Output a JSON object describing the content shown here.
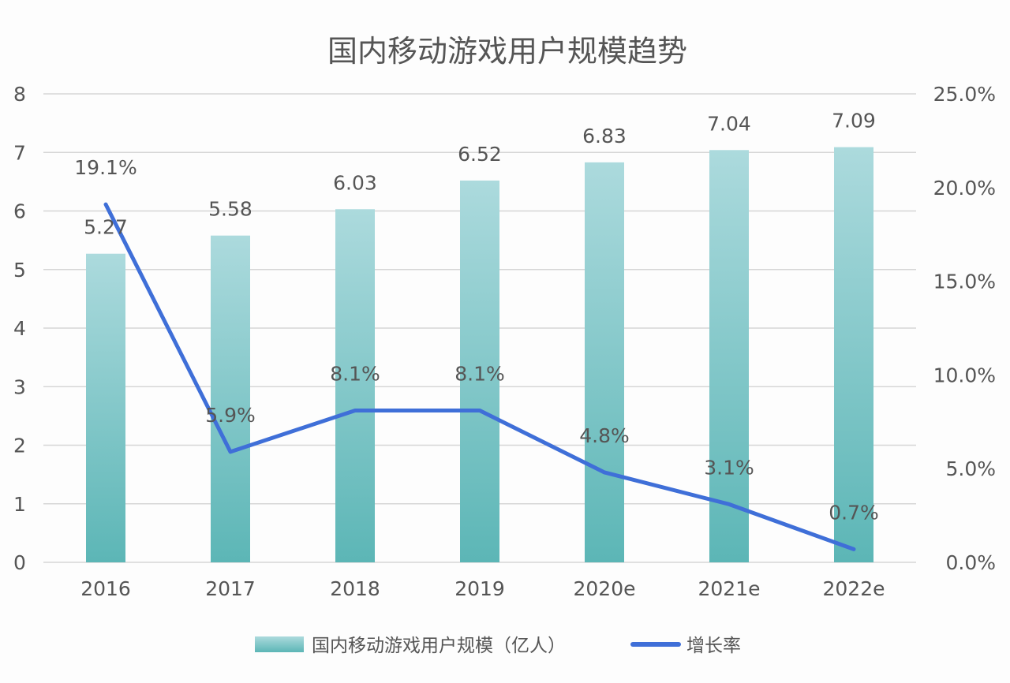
{
  "chart_data": {
    "type": "bar+line",
    "title": "国内移动游戏用户规模趋势",
    "categories": [
      "2016",
      "2017",
      "2018",
      "2019",
      "2020e",
      "2021e",
      "2022e"
    ],
    "series": [
      {
        "name": "国内移动游戏用户规模（亿人）",
        "type": "bar",
        "axis": "left",
        "values": [
          5.27,
          5.58,
          6.03,
          6.52,
          6.83,
          7.04,
          7.09
        ],
        "labels": [
          "5.27",
          "5.58",
          "6.03",
          "6.52",
          "6.83",
          "7.04",
          "7.09"
        ],
        "color": "#7cc4c6"
      },
      {
        "name": "增长率",
        "type": "line",
        "axis": "right",
        "values": [
          19.1,
          5.9,
          8.1,
          8.1,
          4.8,
          3.1,
          0.7
        ],
        "labels": [
          "19.1%",
          "5.9%",
          "8.1%",
          "8.1%",
          "4.8%",
          "3.1%",
          "0.7%"
        ],
        "color": "#3f6fd8"
      }
    ],
    "y_left": {
      "range": [
        0,
        8
      ],
      "ticks": [
        "0",
        "1",
        "2",
        "3",
        "4",
        "5",
        "6",
        "7",
        "8"
      ]
    },
    "y_right": {
      "range": [
        0,
        25
      ],
      "ticks": [
        "0.0%",
        "5.0%",
        "10.0%",
        "15.0%",
        "20.0%",
        "25.0%"
      ]
    },
    "grid": true,
    "legend": "bottom"
  }
}
